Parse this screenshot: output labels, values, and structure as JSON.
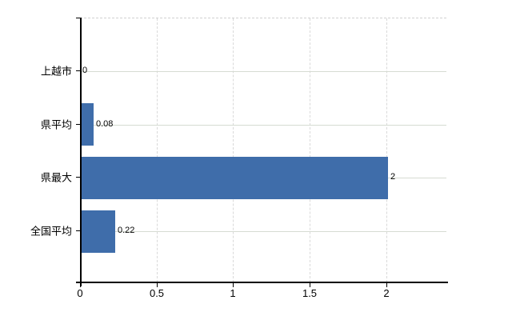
{
  "chart_data": {
    "type": "bar",
    "orientation": "horizontal",
    "title": "",
    "xlabel": "",
    "ylabel": "",
    "categories": [
      "上越市",
      "県平均",
      "県最大",
      "全国平均"
    ],
    "values": [
      0,
      0.08,
      2,
      0.22
    ],
    "value_labels": [
      "0",
      "0.08",
      "2",
      "0.22"
    ],
    "x_ticks": [
      0,
      0.5,
      1,
      1.5,
      2
    ],
    "x_tick_labels": [
      "0",
      "0.5",
      "1",
      "1.5",
      "2"
    ],
    "xlim": [
      0,
      2.39
    ],
    "grid": "on",
    "legend": "none",
    "bar_color": "#3f6daa",
    "vertical_gridline_color": "#d9d9d9",
    "horizontal_gridline_color": "#d6dcd2",
    "axis_color": "#000000",
    "text_color": "#000000",
    "background_color": "#ffffff"
  }
}
